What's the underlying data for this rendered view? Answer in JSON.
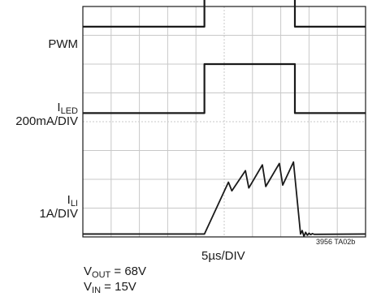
{
  "chart_data": {
    "type": "line",
    "grid": true,
    "x_divisions": 10,
    "y_divisions": 8,
    "xlabel": "5µs/DIV",
    "figure_id": "3956 TA02b",
    "conditions": [
      {
        "symbol": "V",
        "subscript": "OUT",
        "text": " = 68V"
      },
      {
        "symbol": "V",
        "subscript": "IN",
        "text": " = 15V"
      }
    ],
    "colors": {
      "trace": "#1a1a1a",
      "grid": "#c8c8c8",
      "frame": "#1a1a1a"
    },
    "x": [
      0,
      1,
      2,
      3,
      4.3,
      4.8,
      5.2,
      5.6,
      6.1,
      6.5,
      7.0,
      7.5,
      8,
      9,
      10
    ],
    "series": [
      {
        "name": "PWM",
        "y_div": [
          7.3,
          7.3,
          7.3,
          7.3,
          8.3,
          8.3,
          8.3,
          8.3,
          8.3,
          8.3,
          8.3,
          7.3,
          7.3,
          7.3,
          7.3
        ]
      },
      {
        "name": "I",
        "subscript": "LED",
        "scale": "200mA/DIV",
        "y_div": [
          4.3,
          4.3,
          4.3,
          4.3,
          6.0,
          6.0,
          6.0,
          6.0,
          6.0,
          6.0,
          6.0,
          4.3,
          4.3,
          4.3,
          4.3
        ]
      },
      {
        "name": "I",
        "subscript": "LI",
        "scale": "1A/DIV",
        "ripple": {
          "start_x": 4.3,
          "end_x": 7.45,
          "peaks_x": [
            5.15,
            5.75,
            6.35,
            6.95,
            7.45
          ],
          "peaks_y_div": [
            1.9,
            2.3,
            2.5,
            2.55,
            2.6
          ],
          "valleys_y_div": [
            1.3,
            1.6,
            1.7,
            1.75,
            1.8
          ]
        },
        "baseline_y_div": 0.1
      }
    ]
  }
}
